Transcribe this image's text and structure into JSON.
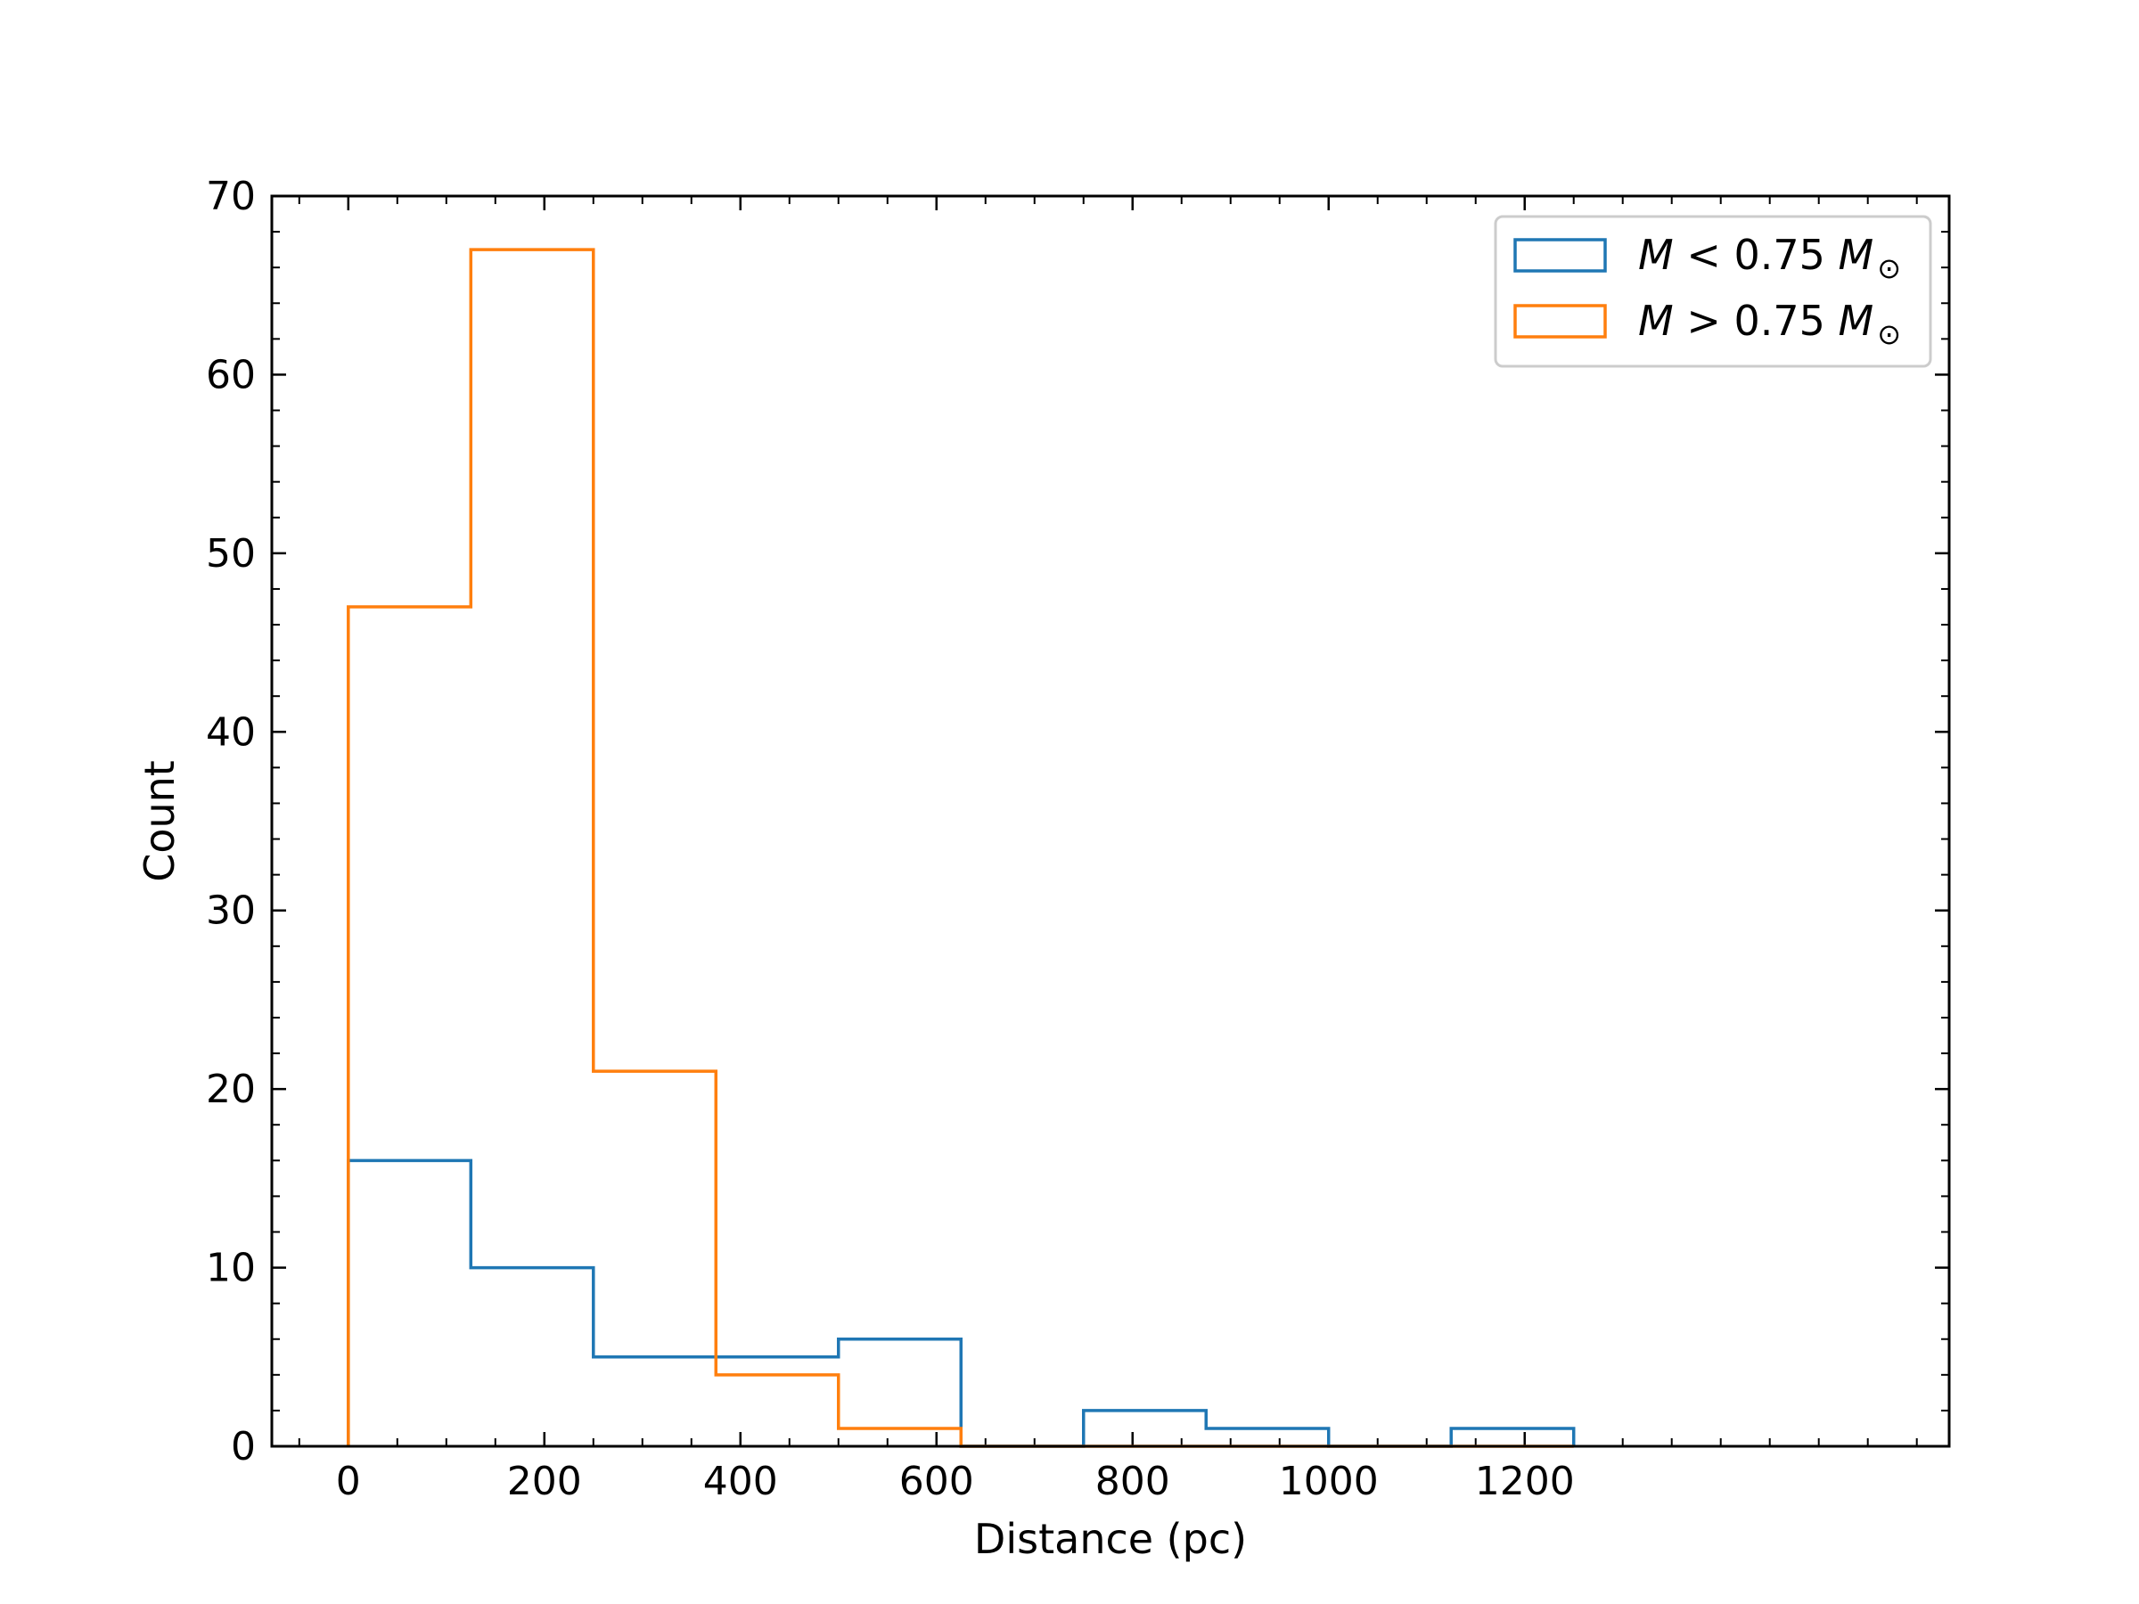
{
  "chart_data": {
    "type": "histogram",
    "xlabel": "Distance (pc)",
    "ylabel": "Count",
    "xlim": [
      -78,
      1633
    ],
    "ylim": [
      0,
      70
    ],
    "xticks": [
      0,
      200,
      400,
      600,
      800,
      1000,
      1200
    ],
    "yticks": [
      0,
      10,
      20,
      30,
      40,
      50,
      60,
      70
    ],
    "grid": false,
    "legend_position": "top-right",
    "bin_edges": [
      0,
      125,
      250,
      375,
      500,
      625,
      750,
      875,
      1000,
      1125,
      1250
    ],
    "series": [
      {
        "name_main": "M",
        "name_op": " < 0.75 ",
        "name_sym": "M",
        "name_sub": "⊙",
        "color": "#1f77b4",
        "counts": [
          16,
          10,
          5,
          5,
          6,
          0,
          2,
          1,
          0,
          1
        ]
      },
      {
        "name_main": "M",
        "name_op": " > 0.75 ",
        "name_sym": "M",
        "name_sub": "⊙",
        "color": "#ff7f0e",
        "counts": [
          47,
          67,
          21,
          4,
          1,
          0,
          0,
          0,
          0,
          0
        ]
      }
    ]
  }
}
